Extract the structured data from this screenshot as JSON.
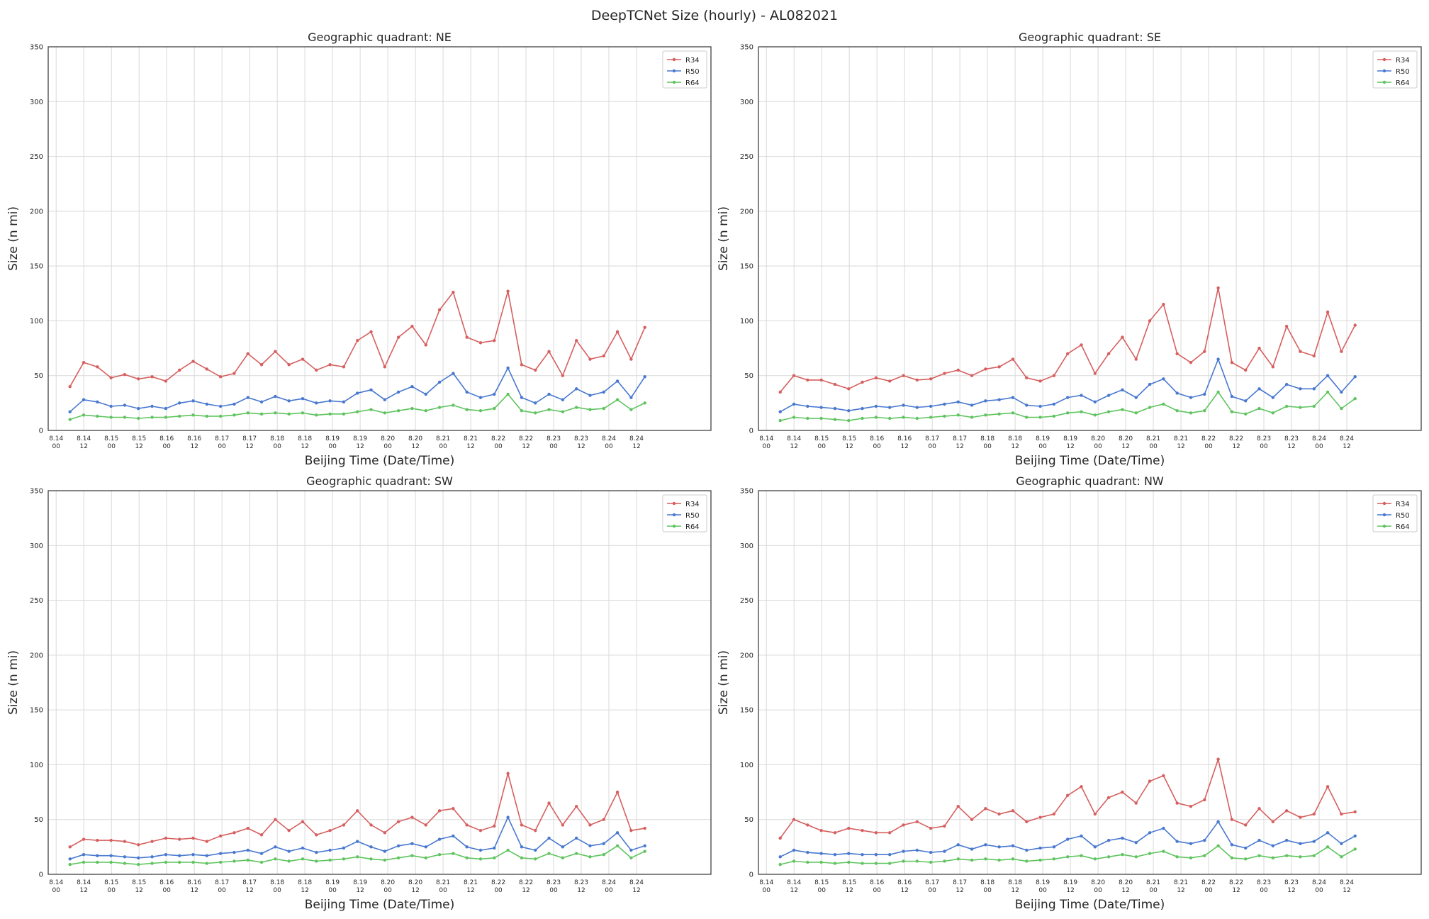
{
  "figure": {
    "suptitle": "DeepTCNet Size (hourly) - AL082021"
  },
  "colors": {
    "R34": "#d65f5f",
    "R50": "#4878d0",
    "R64": "#5fc45f",
    "grid": "#d9d9d9",
    "axes_frame": "#333333",
    "text": "#262626"
  },
  "chart_data": [
    {
      "type": "line",
      "title": "Geographic quadrant: NE",
      "xlabel": "Beijing Time (Date/Time)",
      "ylabel": "Size (n mi)",
      "ylim": [
        0,
        350
      ],
      "yticks": [
        "0",
        "50",
        "100",
        "150",
        "200",
        "250",
        "300",
        "350"
      ],
      "xticks": [
        [
          "8.14",
          "00"
        ],
        [
          "8.14",
          "12"
        ],
        [
          "8.15",
          "00"
        ],
        [
          "8.15",
          "12"
        ],
        [
          "8.16",
          "00"
        ],
        [
          "8.16",
          "12"
        ],
        [
          "8.17",
          "00"
        ],
        [
          "8.17",
          "12"
        ],
        [
          "8.18",
          "00"
        ],
        [
          "8.18",
          "12"
        ],
        [
          "8.19",
          "00"
        ],
        [
          "8.19",
          "12"
        ],
        [
          "8.20",
          "00"
        ],
        [
          "8.20",
          "12"
        ],
        [
          "8.21",
          "00"
        ],
        [
          "8.21",
          "12"
        ],
        [
          "8.22",
          "00"
        ],
        [
          "8.22",
          "12"
        ],
        [
          "8.23",
          "00"
        ],
        [
          "8.23",
          "12"
        ],
        [
          "8.24",
          "00"
        ],
        [
          "8.24",
          "12"
        ]
      ],
      "grid": true,
      "legend": "top-right",
      "x": [
        "8.14 06",
        "8.14 12",
        "8.14 18",
        "8.15 00",
        "8.15 06",
        "8.15 12",
        "8.15 18",
        "8.16 00",
        "8.16 06",
        "8.16 12",
        "8.16 18",
        "8.17 00",
        "8.17 06",
        "8.17 12",
        "8.17 18",
        "8.18 00",
        "8.18 06",
        "8.18 12",
        "8.18 18",
        "8.19 00",
        "8.19 06",
        "8.19 12",
        "8.19 18",
        "8.20 00",
        "8.20 06",
        "8.20 12",
        "8.20 18",
        "8.21 00",
        "8.21 06",
        "8.21 12",
        "8.21 18",
        "8.22 00",
        "8.22 06",
        "8.22 12",
        "8.22 18",
        "8.23 00",
        "8.23 06",
        "8.23 12",
        "8.23 18",
        "8.24 00",
        "8.24 06",
        "8.24 12",
        "8.24 18"
      ],
      "series": [
        {
          "name": "R34",
          "values": [
            40,
            62,
            58,
            48,
            51,
            47,
            49,
            45,
            55,
            63,
            56,
            49,
            52,
            70,
            60,
            72,
            60,
            65,
            55,
            60,
            58,
            82,
            90,
            58,
            85,
            95,
            78,
            110,
            126,
            85,
            80,
            82,
            127,
            60,
            55,
            72,
            50,
            82,
            65,
            68,
            90,
            65,
            94
          ]
        },
        {
          "name": "R50",
          "values": [
            17,
            28,
            26,
            22,
            23,
            20,
            22,
            20,
            25,
            27,
            24,
            22,
            24,
            30,
            26,
            31,
            27,
            29,
            25,
            27,
            26,
            34,
            37,
            28,
            35,
            40,
            33,
            44,
            52,
            35,
            30,
            33,
            57,
            30,
            25,
            33,
            28,
            38,
            32,
            35,
            45,
            30,
            49
          ]
        },
        {
          "name": "R64",
          "values": [
            10,
            14,
            13,
            12,
            12,
            11,
            12,
            12,
            13,
            14,
            13,
            13,
            14,
            16,
            15,
            16,
            15,
            16,
            14,
            15,
            15,
            17,
            19,
            16,
            18,
            20,
            18,
            21,
            23,
            19,
            18,
            20,
            33,
            18,
            16,
            19,
            17,
            21,
            19,
            20,
            28,
            19,
            25
          ]
        }
      ]
    },
    {
      "type": "line",
      "title": "Geographic quadrant: SE",
      "xlabel": "Beijing Time (Date/Time)",
      "ylabel": "Size (n mi)",
      "ylim": [
        0,
        350
      ],
      "yticks": [
        "0",
        "50",
        "100",
        "150",
        "200",
        "250",
        "300",
        "350"
      ],
      "xticks": [
        [
          "8.14",
          "00"
        ],
        [
          "8.14",
          "12"
        ],
        [
          "8.15",
          "00"
        ],
        [
          "8.15",
          "12"
        ],
        [
          "8.16",
          "00"
        ],
        [
          "8.16",
          "12"
        ],
        [
          "8.17",
          "00"
        ],
        [
          "8.17",
          "12"
        ],
        [
          "8.18",
          "00"
        ],
        [
          "8.18",
          "12"
        ],
        [
          "8.19",
          "00"
        ],
        [
          "8.19",
          "12"
        ],
        [
          "8.20",
          "00"
        ],
        [
          "8.20",
          "12"
        ],
        [
          "8.21",
          "00"
        ],
        [
          "8.21",
          "12"
        ],
        [
          "8.22",
          "00"
        ],
        [
          "8.22",
          "12"
        ],
        [
          "8.23",
          "00"
        ],
        [
          "8.23",
          "12"
        ],
        [
          "8.24",
          "00"
        ],
        [
          "8.24",
          "12"
        ]
      ],
      "grid": true,
      "legend": "top-right",
      "x": [
        "8.14 06",
        "8.14 12",
        "8.14 18",
        "8.15 00",
        "8.15 06",
        "8.15 12",
        "8.15 18",
        "8.16 00",
        "8.16 06",
        "8.16 12",
        "8.16 18",
        "8.17 00",
        "8.17 06",
        "8.17 12",
        "8.17 18",
        "8.18 00",
        "8.18 06",
        "8.18 12",
        "8.18 18",
        "8.19 00",
        "8.19 06",
        "8.19 12",
        "8.19 18",
        "8.20 00",
        "8.20 06",
        "8.20 12",
        "8.20 18",
        "8.21 00",
        "8.21 06",
        "8.21 12",
        "8.21 18",
        "8.22 00",
        "8.22 06",
        "8.22 12",
        "8.22 18",
        "8.23 00",
        "8.23 06",
        "8.23 12",
        "8.23 18",
        "8.24 00",
        "8.24 06",
        "8.24 12",
        "8.24 18"
      ],
      "series": [
        {
          "name": "R34",
          "values": [
            35,
            50,
            46,
            46,
            42,
            38,
            44,
            48,
            45,
            50,
            46,
            47,
            52,
            55,
            50,
            56,
            58,
            65,
            48,
            45,
            50,
            70,
            78,
            52,
            70,
            85,
            65,
            100,
            115,
            70,
            62,
            72,
            130,
            62,
            55,
            75,
            58,
            95,
            72,
            68,
            108,
            72,
            96
          ]
        },
        {
          "name": "R50",
          "values": [
            17,
            24,
            22,
            21,
            20,
            18,
            20,
            22,
            21,
            23,
            21,
            22,
            24,
            26,
            23,
            27,
            28,
            30,
            23,
            22,
            24,
            30,
            32,
            26,
            32,
            37,
            30,
            42,
            47,
            34,
            30,
            33,
            65,
            31,
            27,
            38,
            30,
            42,
            38,
            38,
            50,
            35,
            49
          ]
        },
        {
          "name": "R64",
          "values": [
            9,
            12,
            11,
            11,
            10,
            9,
            11,
            12,
            11,
            12,
            11,
            12,
            13,
            14,
            12,
            14,
            15,
            16,
            12,
            12,
            13,
            16,
            17,
            14,
            17,
            19,
            16,
            21,
            24,
            18,
            16,
            18,
            35,
            17,
            15,
            20,
            16,
            22,
            21,
            22,
            35,
            20,
            29
          ]
        }
      ]
    },
    {
      "type": "line",
      "title": "Geographic quadrant: SW",
      "xlabel": "Beijing Time (Date/Time)",
      "ylabel": "Size (n mi)",
      "ylim": [
        0,
        350
      ],
      "yticks": [
        "0",
        "50",
        "100",
        "150",
        "200",
        "250",
        "300",
        "350"
      ],
      "xticks": [
        [
          "8.14",
          "00"
        ],
        [
          "8.14",
          "12"
        ],
        [
          "8.15",
          "00"
        ],
        [
          "8.15",
          "12"
        ],
        [
          "8.16",
          "00"
        ],
        [
          "8.16",
          "12"
        ],
        [
          "8.17",
          "00"
        ],
        [
          "8.17",
          "12"
        ],
        [
          "8.18",
          "00"
        ],
        [
          "8.18",
          "12"
        ],
        [
          "8.19",
          "00"
        ],
        [
          "8.19",
          "12"
        ],
        [
          "8.20",
          "00"
        ],
        [
          "8.20",
          "12"
        ],
        [
          "8.21",
          "00"
        ],
        [
          "8.21",
          "12"
        ],
        [
          "8.22",
          "00"
        ],
        [
          "8.22",
          "12"
        ],
        [
          "8.23",
          "00"
        ],
        [
          "8.23",
          "12"
        ],
        [
          "8.24",
          "00"
        ],
        [
          "8.24",
          "12"
        ]
      ],
      "grid": true,
      "legend": "top-right",
      "x": [
        "8.14 06",
        "8.14 12",
        "8.14 18",
        "8.15 00",
        "8.15 06",
        "8.15 12",
        "8.15 18",
        "8.16 00",
        "8.16 06",
        "8.16 12",
        "8.16 18",
        "8.17 00",
        "8.17 06",
        "8.17 12",
        "8.17 18",
        "8.18 00",
        "8.18 06",
        "8.18 12",
        "8.18 18",
        "8.19 00",
        "8.19 06",
        "8.19 12",
        "8.19 18",
        "8.20 00",
        "8.20 06",
        "8.20 12",
        "8.20 18",
        "8.21 00",
        "8.21 06",
        "8.21 12",
        "8.21 18",
        "8.22 00",
        "8.22 06",
        "8.22 12",
        "8.22 18",
        "8.23 00",
        "8.23 06",
        "8.23 12",
        "8.23 18",
        "8.24 00",
        "8.24 06",
        "8.24 12",
        "8.24 18"
      ],
      "series": [
        {
          "name": "R34",
          "values": [
            25,
            32,
            31,
            31,
            30,
            27,
            30,
            33,
            32,
            33,
            30,
            35,
            38,
            42,
            36,
            50,
            40,
            48,
            36,
            40,
            45,
            58,
            45,
            38,
            48,
            52,
            45,
            58,
            60,
            45,
            40,
            44,
            92,
            45,
            40,
            65,
            45,
            62,
            45,
            50,
            75,
            40,
            42
          ]
        },
        {
          "name": "R50",
          "values": [
            14,
            18,
            17,
            17,
            16,
            15,
            16,
            18,
            17,
            18,
            17,
            19,
            20,
            22,
            19,
            25,
            21,
            24,
            20,
            22,
            24,
            30,
            25,
            21,
            26,
            28,
            25,
            32,
            35,
            25,
            22,
            24,
            52,
            25,
            22,
            33,
            25,
            33,
            26,
            28,
            38,
            22,
            26
          ]
        },
        {
          "name": "R64",
          "values": [
            9,
            11,
            11,
            11,
            10,
            9,
            10,
            11,
            11,
            11,
            10,
            11,
            12,
            13,
            11,
            14,
            12,
            14,
            12,
            13,
            14,
            16,
            14,
            13,
            15,
            17,
            15,
            18,
            19,
            15,
            14,
            15,
            22,
            15,
            14,
            19,
            15,
            19,
            16,
            18,
            26,
            15,
            21
          ]
        }
      ]
    },
    {
      "type": "line",
      "title": "Geographic quadrant: NW",
      "xlabel": "Beijing Time (Date/Time)",
      "ylabel": "Size (n mi)",
      "ylim": [
        0,
        350
      ],
      "yticks": [
        "0",
        "50",
        "100",
        "150",
        "200",
        "250",
        "300",
        "350"
      ],
      "xticks": [
        [
          "8.14",
          "00"
        ],
        [
          "8.14",
          "12"
        ],
        [
          "8.15",
          "00"
        ],
        [
          "8.15",
          "12"
        ],
        [
          "8.16",
          "00"
        ],
        [
          "8.16",
          "12"
        ],
        [
          "8.17",
          "00"
        ],
        [
          "8.17",
          "12"
        ],
        [
          "8.18",
          "00"
        ],
        [
          "8.18",
          "12"
        ],
        [
          "8.19",
          "00"
        ],
        [
          "8.19",
          "12"
        ],
        [
          "8.20",
          "00"
        ],
        [
          "8.20",
          "12"
        ],
        [
          "8.21",
          "00"
        ],
        [
          "8.21",
          "12"
        ],
        [
          "8.22",
          "00"
        ],
        [
          "8.22",
          "12"
        ],
        [
          "8.23",
          "00"
        ],
        [
          "8.23",
          "12"
        ],
        [
          "8.24",
          "00"
        ],
        [
          "8.24",
          "12"
        ]
      ],
      "grid": true,
      "legend": "top-right",
      "x": [
        "8.14 06",
        "8.14 12",
        "8.14 18",
        "8.15 00",
        "8.15 06",
        "8.15 12",
        "8.15 18",
        "8.16 00",
        "8.16 06",
        "8.16 12",
        "8.16 18",
        "8.17 00",
        "8.17 06",
        "8.17 12",
        "8.17 18",
        "8.18 00",
        "8.18 06",
        "8.18 12",
        "8.18 18",
        "8.19 00",
        "8.19 06",
        "8.19 12",
        "8.19 18",
        "8.20 00",
        "8.20 06",
        "8.20 12",
        "8.20 18",
        "8.21 00",
        "8.21 06",
        "8.21 12",
        "8.21 18",
        "8.22 00",
        "8.22 06",
        "8.22 12",
        "8.22 18",
        "8.23 00",
        "8.23 06",
        "8.23 12",
        "8.23 18",
        "8.24 00",
        "8.24 06",
        "8.24 12",
        "8.24 18"
      ],
      "series": [
        {
          "name": "R34",
          "values": [
            33,
            50,
            45,
            40,
            38,
            42,
            40,
            38,
            38,
            45,
            48,
            42,
            44,
            62,
            50,
            60,
            55,
            58,
            48,
            52,
            55,
            72,
            80,
            55,
            70,
            75,
            65,
            85,
            90,
            65,
            62,
            68,
            105,
            50,
            45,
            60,
            48,
            58,
            52,
            55,
            80,
            55,
            57
          ]
        },
        {
          "name": "R50",
          "values": [
            16,
            22,
            20,
            19,
            18,
            19,
            18,
            18,
            18,
            21,
            22,
            20,
            21,
            27,
            23,
            27,
            25,
            26,
            22,
            24,
            25,
            32,
            35,
            25,
            31,
            33,
            29,
            38,
            42,
            30,
            28,
            31,
            48,
            27,
            24,
            31,
            26,
            31,
            28,
            30,
            38,
            28,
            35
          ]
        },
        {
          "name": "R64",
          "values": [
            9,
            12,
            11,
            11,
            10,
            11,
            10,
            10,
            10,
            12,
            12,
            11,
            12,
            14,
            13,
            14,
            13,
            14,
            12,
            13,
            14,
            16,
            17,
            14,
            16,
            18,
            16,
            19,
            21,
            16,
            15,
            17,
            26,
            15,
            14,
            17,
            15,
            17,
            16,
            17,
            25,
            16,
            23
          ]
        }
      ]
    }
  ]
}
